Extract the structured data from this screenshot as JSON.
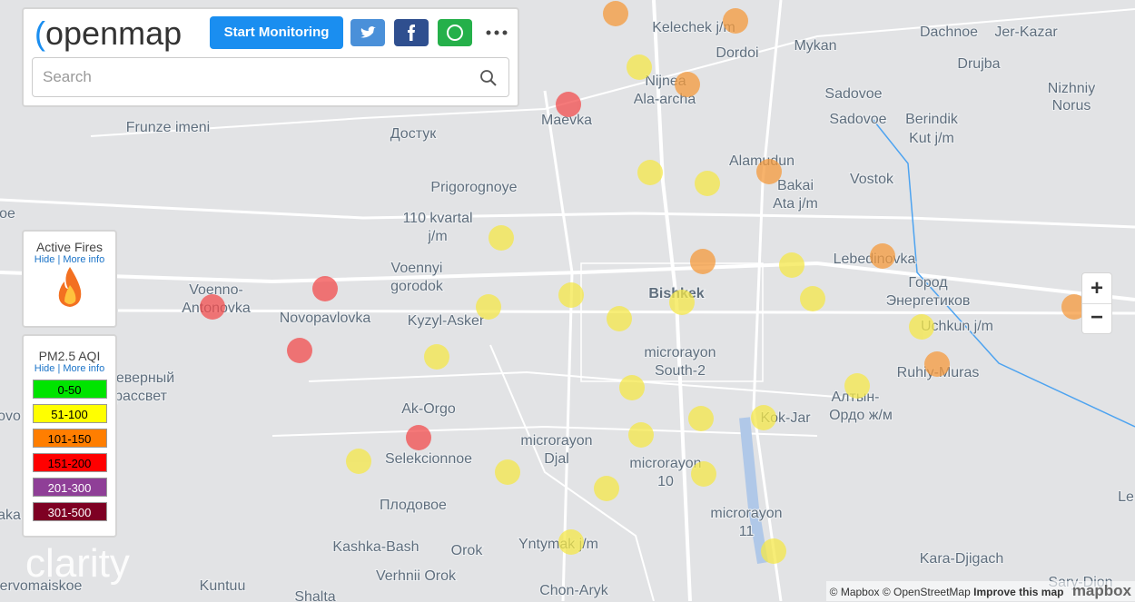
{
  "header": {
    "logo": "openmap",
    "button": "Start Monitoring",
    "search_placeholder": "Search"
  },
  "fires": {
    "title": "Active Fires",
    "hide": "Hide",
    "more": "More info"
  },
  "aqi": {
    "title": "PM2.5 AQI",
    "hide": "Hide",
    "more": "More info",
    "legend": [
      {
        "label": "0-50",
        "color": "#00e400"
      },
      {
        "label": "51-100",
        "color": "#ffff00"
      },
      {
        "label": "101-150",
        "color": "#ff7e00"
      },
      {
        "label": "151-200",
        "color": "#ff0000"
      },
      {
        "label": "201-300",
        "color": "#8f3f97"
      },
      {
        "label": "301-500",
        "color": "#7e0023"
      }
    ]
  },
  "zoom": {
    "in": "+",
    "out": "−"
  },
  "brand": "clarity",
  "attribution": {
    "mapbox": "© Mapbox",
    "osm": "© OpenStreetMap",
    "improve": "Improve this map",
    "logo": "mapbox"
  },
  "map": {
    "labels": [
      "Kelechek j/m",
      "Mykan",
      "Dachnoe",
      "Jer-Kazar",
      "Dordoi",
      "Drujba",
      "Nijnea",
      "Ala-archa",
      "Nizhniy",
      "Norus",
      "Sadovoe",
      "Maevka",
      "Sadovoe",
      "Berindik",
      "Kut j/m",
      "Frunze imeni",
      "Достук",
      "Alamudun",
      "Vostok",
      "Bakai",
      "Ata j/m",
      "Prigorognoye",
      "110 kvartal",
      "j/m",
      "Lebedinovka",
      "Voennyi",
      "gorodok",
      "Город",
      "Энергетиков",
      "Voenno-",
      "Antonovka",
      "Bishkek",
      "Novopavlovka",
      "Kyzyl-Asker",
      "Uchkun j/m",
      "microrayon",
      "South-2",
      "Ruhiy-Muras",
      "еверный",
      "рассвет",
      "Алтын-",
      "Ордо ж/м",
      "Ak-Orgo",
      "Kok-Jar",
      "microrayon",
      "Djal",
      "Selekcionnoe",
      "microrayon",
      "10",
      "Плодовое",
      "microrayon",
      "11",
      "Kashka-Bash",
      "Orok",
      "Yntymak j/m",
      "Kara-Djigach",
      "Verhnii Orok",
      "Sary-Dion",
      "Kuntuu",
      "Chon-Aryk",
      "ervomaiskoe",
      "Shalta",
      "oe",
      "ovo",
      "aka",
      "Le"
    ]
  }
}
